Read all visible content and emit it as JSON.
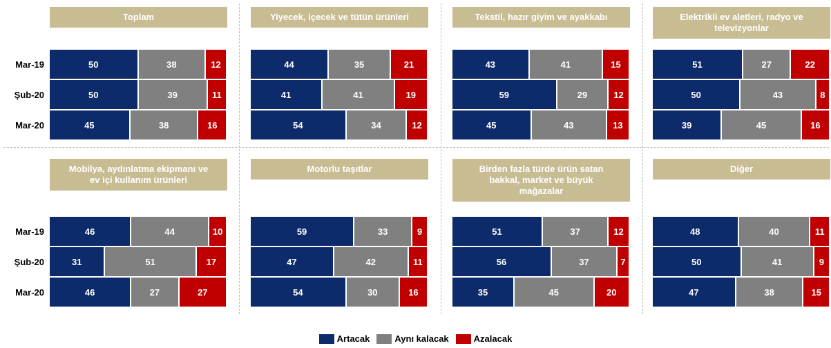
{
  "legend": [
    {
      "name": "Artacak",
      "color": "#0d2a6b"
    },
    {
      "name": "Aynı kalacak",
      "color": "#808080"
    },
    {
      "name": "Azalacak",
      "color": "#c00000"
    }
  ],
  "chart_data": [
    {
      "type": "bar",
      "title": "Toplam",
      "categories": [
        "Mar-19",
        "Şub-20",
        "Mar-20"
      ],
      "series": [
        {
          "values": [
            50,
            50,
            45
          ]
        },
        {
          "values": [
            38,
            39,
            38
          ]
        },
        {
          "values": [
            12,
            11,
            16
          ]
        }
      ]
    },
    {
      "type": "bar",
      "title": "Yiyecek, içecek ve tütün ürünleri",
      "series": [
        {
          "values": [
            44,
            41,
            54
          ]
        },
        {
          "values": [
            35,
            41,
            34
          ]
        },
        {
          "values": [
            21,
            19,
            12
          ]
        }
      ]
    },
    {
      "type": "bar",
      "title": "Tekstil, hazır giyim ve ayakkabı",
      "series": [
        {
          "values": [
            43,
            59,
            45
          ]
        },
        {
          "values": [
            41,
            29,
            43
          ]
        },
        {
          "values": [
            15,
            12,
            13
          ]
        }
      ]
    },
    {
      "type": "bar",
      "title": "Elektrikli ev aletleri, radyo ve televizyonlar",
      "series": [
        {
          "values": [
            51,
            50,
            39
          ]
        },
        {
          "values": [
            27,
            43,
            45
          ]
        },
        {
          "values": [
            22,
            8,
            16
          ]
        }
      ]
    },
    {
      "type": "bar",
      "title": "Mobilya, aydınlatma ekipmanı ve ev içi kullanım ürünleri",
      "categories": [
        "Mar-19",
        "Şub-20",
        "Mar-20"
      ],
      "series": [
        {
          "values": [
            46,
            31,
            46
          ]
        },
        {
          "values": [
            44,
            51,
            27
          ]
        },
        {
          "values": [
            10,
            17,
            27
          ]
        }
      ]
    },
    {
      "type": "bar",
      "title": "Motorlu taşıtlar",
      "series": [
        {
          "values": [
            59,
            47,
            54
          ]
        },
        {
          "values": [
            33,
            42,
            30
          ]
        },
        {
          "values": [
            9,
            11,
            16
          ]
        }
      ]
    },
    {
      "type": "bar",
      "title": "Birden fazla türde ürün satan bakkal, market ve büyük mağazalar",
      "series": [
        {
          "values": [
            51,
            56,
            35
          ]
        },
        {
          "values": [
            37,
            37,
            45
          ]
        },
        {
          "values": [
            12,
            7,
            20
          ]
        }
      ]
    },
    {
      "type": "bar",
      "title": "Diğer",
      "series": [
        {
          "values": [
            48,
            50,
            47
          ]
        },
        {
          "values": [
            40,
            41,
            38
          ]
        },
        {
          "values": [
            11,
            9,
            15
          ]
        }
      ]
    }
  ]
}
